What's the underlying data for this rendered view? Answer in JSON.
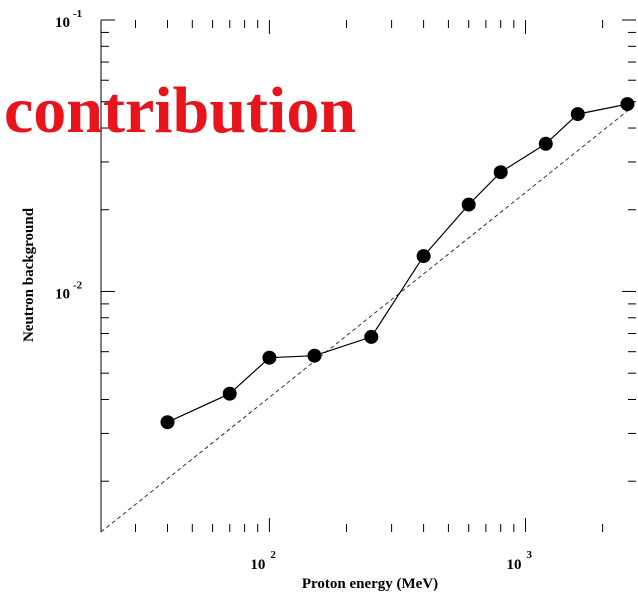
{
  "overlay_text": "contribution",
  "colors": {
    "overlay": "#e8141b",
    "axes": "#000000",
    "marker": "#000000"
  },
  "chart_data": {
    "type": "line",
    "xlabel": "Proton energy (MeV)",
    "ylabel": "Neutron background",
    "xscale": "log",
    "yscale": "log",
    "xlim": [
      22,
      2700
    ],
    "ylim": [
      0.0013,
      0.1
    ],
    "x_major_ticks": [
      {
        "base": "10",
        "exp": "2",
        "value": 100
      },
      {
        "base": "10",
        "exp": "3",
        "value": 1000
      }
    ],
    "y_major_ticks": [
      {
        "base": "10",
        "exp": "-1",
        "value": 0.1
      },
      {
        "base": "10",
        "exp": "-2",
        "value": 0.01
      }
    ],
    "grid": false,
    "series": [
      {
        "style": "solid-with-markers",
        "x": [
          40,
          70,
          100,
          150,
          250,
          400,
          600,
          800,
          1200,
          1600,
          2500
        ],
        "y": [
          0.0033,
          0.0042,
          0.0057,
          0.0058,
          0.0068,
          0.0135,
          0.0209,
          0.0275,
          0.035,
          0.045,
          0.049
        ]
      },
      {
        "style": "dashed",
        "x": [
          22,
          2700
        ],
        "y": [
          0.0013,
          0.049
        ]
      }
    ]
  }
}
